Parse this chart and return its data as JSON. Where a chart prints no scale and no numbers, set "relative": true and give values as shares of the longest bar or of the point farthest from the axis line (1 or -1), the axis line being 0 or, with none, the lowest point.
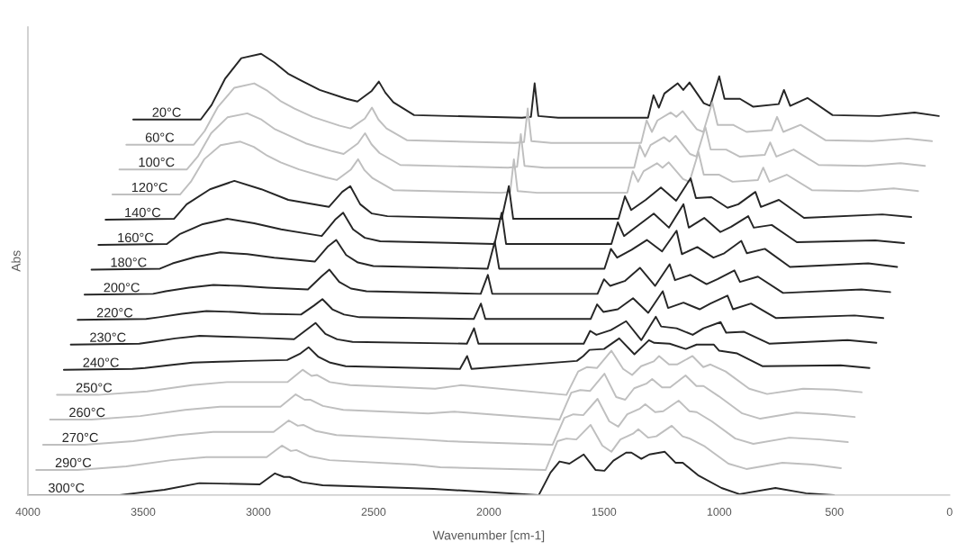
{
  "chart_data": {
    "type": "line",
    "relative": true,
    "xlabel": "Wavenumber [cm-1]",
    "ylabel": "Abs",
    "xlim": [
      4000,
      0
    ],
    "xticks": [
      4000,
      3500,
      3000,
      2500,
      2000,
      1500,
      1000,
      500,
      0
    ],
    "grid": false,
    "series": [
      {
        "name": "20°C",
        "color": "#262626",
        "x": [
          3543,
          3250,
          3203,
          3145,
          3074,
          2988,
          2930,
          2871,
          2813,
          2734,
          2617,
          2570,
          2508,
          2477,
          2449,
          2414,
          2324,
          1856,
          1817,
          1801,
          1785,
          1699,
          1309,
          1285,
          1262,
          1238,
          1180,
          1156,
          1129,
          1067,
          1039,
          1000,
          977,
          910,
          852,
          742,
          719,
          692,
          617,
          508,
          305,
          153,
          47
        ],
        "values": [
          0.851,
          0.851,
          0.884,
          0.943,
          0.99,
          1.0,
          0.98,
          0.955,
          0.939,
          0.918,
          0.898,
          0.892,
          0.916,
          0.937,
          0.912,
          0.89,
          0.861,
          0.855,
          0.857,
          0.933,
          0.859,
          0.855,
          0.855,
          0.906,
          0.878,
          0.91,
          0.933,
          0.918,
          0.935,
          0.888,
          0.882,
          0.949,
          0.898,
          0.898,
          0.88,
          0.886,
          0.918,
          0.882,
          0.9,
          0.861,
          0.859,
          0.867,
          0.859
        ]
      },
      {
        "name": "60°C",
        "color": "#bfbfbf",
        "x": [
          3573,
          3280,
          3233,
          3175,
          3104,
          3018,
          2960,
          2901,
          2843,
          2764,
          2647,
          2600,
          2538,
          2507,
          2479,
          2444,
          2354,
          1886,
          1847,
          1831,
          1815,
          1729,
          1339,
          1315,
          1292,
          1268,
          1210,
          1186,
          1159,
          1097,
          1069,
          1030,
          1007,
          940,
          882,
          772,
          749,
          722,
          647,
          538,
          335,
          183,
          77
        ],
        "values": [
          0.794,
          0.794,
          0.825,
          0.88,
          0.923,
          0.933,
          0.916,
          0.892,
          0.876,
          0.857,
          0.837,
          0.831,
          0.853,
          0.878,
          0.851,
          0.831,
          0.804,
          0.798,
          0.8,
          0.876,
          0.802,
          0.798,
          0.798,
          0.849,
          0.823,
          0.849,
          0.867,
          0.857,
          0.87,
          0.829,
          0.823,
          0.89,
          0.839,
          0.839,
          0.823,
          0.827,
          0.857,
          0.823,
          0.839,
          0.804,
          0.802,
          0.808,
          0.802
        ]
      },
      {
        "name": "100°C",
        "color": "#bfbfbf",
        "x": [
          3603,
          3310,
          3263,
          3205,
          3134,
          3048,
          2990,
          2931,
          2873,
          2794,
          2677,
          2630,
          2568,
          2537,
          2509,
          2474,
          2384,
          1916,
          1877,
          1861,
          1845,
          1759,
          1369,
          1345,
          1322,
          1298,
          1240,
          1216,
          1189,
          1127,
          1099,
          1060,
          1037,
          970,
          912,
          802,
          779,
          752,
          677,
          568,
          365,
          213,
          107
        ],
        "values": [
          0.738,
          0.738,
          0.767,
          0.82,
          0.856,
          0.865,
          0.852,
          0.83,
          0.816,
          0.797,
          0.779,
          0.773,
          0.797,
          0.82,
          0.795,
          0.775,
          0.748,
          0.742,
          0.744,
          0.818,
          0.746,
          0.742,
          0.742,
          0.793,
          0.767,
          0.793,
          0.811,
          0.801,
          0.814,
          0.773,
          0.767,
          0.834,
          0.783,
          0.783,
          0.767,
          0.771,
          0.799,
          0.767,
          0.783,
          0.748,
          0.746,
          0.752,
          0.746
        ]
      },
      {
        "name": "120°C",
        "color": "#bfbfbf",
        "x": [
          3633,
          3340,
          3293,
          3235,
          3164,
          3078,
          3020,
          2961,
          2903,
          2824,
          2707,
          2660,
          2598,
          2567,
          2539,
          2504,
          2414,
          1946,
          1907,
          1891,
          1875,
          1789,
          1399,
          1375,
          1352,
          1328,
          1270,
          1246,
          1219,
          1157,
          1129,
          1090,
          1067,
          1000,
          942,
          832,
          809,
          782,
          707,
          598,
          395,
          243,
          137
        ],
        "values": [
          0.681,
          0.681,
          0.71,
          0.761,
          0.793,
          0.801,
          0.789,
          0.769,
          0.754,
          0.738,
          0.72,
          0.714,
          0.738,
          0.761,
          0.736,
          0.718,
          0.691,
          0.685,
          0.687,
          0.761,
          0.689,
          0.685,
          0.685,
          0.734,
          0.71,
          0.734,
          0.752,
          0.742,
          0.754,
          0.716,
          0.71,
          0.777,
          0.726,
          0.726,
          0.71,
          0.714,
          0.742,
          0.71,
          0.726,
          0.691,
          0.689,
          0.695,
          0.689
        ]
      },
      {
        "name": "140°C",
        "color": "#262626",
        "x": [
          3663,
          3366,
          3311,
          3210,
          3104,
          2987,
          2870,
          2694,
          2636,
          2601,
          2558,
          2507,
          2440,
          1944,
          1913,
          1894,
          1437,
          1409,
          1382,
          1319,
          1253,
          1187,
          1124,
          1101,
          1034,
          964,
          917,
          843,
          819,
          741,
          632,
          292,
          167
        ],
        "values": [
          0.624,
          0.626,
          0.659,
          0.693,
          0.712,
          0.693,
          0.669,
          0.653,
          0.687,
          0.7,
          0.659,
          0.638,
          0.632,
          0.626,
          0.7,
          0.626,
          0.626,
          0.677,
          0.646,
          0.669,
          0.697,
          0.667,
          0.718,
          0.673,
          0.675,
          0.651,
          0.659,
          0.687,
          0.653,
          0.669,
          0.628,
          0.636,
          0.63
        ]
      },
      {
        "name": "160°C",
        "color": "#262626",
        "x": [
          3694,
          3397,
          3342,
          3241,
          3135,
          3018,
          2901,
          2725,
          2667,
          2632,
          2589,
          2538,
          2471,
          1975,
          1944,
          1925,
          1468,
          1440,
          1413,
          1350,
          1284,
          1218,
          1155,
          1132,
          1065,
          995,
          948,
          874,
          850,
          772,
          663,
          323,
          198
        ],
        "values": [
          0.567,
          0.569,
          0.591,
          0.614,
          0.626,
          0.616,
          0.602,
          0.587,
          0.624,
          0.64,
          0.602,
          0.583,
          0.575,
          0.569,
          0.64,
          0.569,
          0.569,
          0.618,
          0.587,
          0.612,
          0.638,
          0.606,
          0.659,
          0.606,
          0.628,
          0.596,
          0.608,
          0.632,
          0.606,
          0.612,
          0.573,
          0.577,
          0.571
        ]
      },
      {
        "name": "180°C",
        "color": "#262626",
        "x": [
          3724,
          3427,
          3372,
          3271,
          3165,
          3048,
          2931,
          2755,
          2697,
          2662,
          2619,
          2568,
          2501,
          2005,
          1974,
          1955,
          1498,
          1470,
          1443,
          1380,
          1314,
          1248,
          1185,
          1162,
          1095,
          1025,
          978,
          904,
          880,
          802,
          693,
          353,
          228
        ],
        "values": [
          0.511,
          0.513,
          0.525,
          0.54,
          0.55,
          0.546,
          0.538,
          0.529,
          0.564,
          0.578,
          0.544,
          0.527,
          0.519,
          0.513,
          0.574,
          0.513,
          0.513,
          0.558,
          0.538,
          0.556,
          0.578,
          0.552,
          0.599,
          0.546,
          0.562,
          0.538,
          0.548,
          0.576,
          0.548,
          0.558,
          0.517,
          0.525,
          0.517
        ]
      },
      {
        "name": "200°C",
        "color": "#262626",
        "x": [
          3754,
          3457,
          3402,
          3301,
          3195,
          3078,
          2961,
          2785,
          2727,
          2692,
          2649,
          2598,
          2531,
          2035,
          2004,
          1985,
          1528,
          1500,
          1473,
          1410,
          1344,
          1278,
          1215,
          1192,
          1125,
          1055,
          1008,
          934,
          910,
          832,
          723,
          383,
          258
        ],
        "values": [
          0.454,
          0.456,
          0.462,
          0.47,
          0.476,
          0.474,
          0.47,
          0.466,
          0.495,
          0.511,
          0.483,
          0.468,
          0.462,
          0.456,
          0.499,
          0.456,
          0.456,
          0.489,
          0.474,
          0.485,
          0.515,
          0.474,
          0.523,
          0.487,
          0.499,
          0.478,
          0.489,
          0.509,
          0.483,
          0.495,
          0.458,
          0.466,
          0.46
        ]
      },
      {
        "name": "220°C",
        "color": "#262626",
        "x": [
          3784,
          3487,
          3432,
          3331,
          3225,
          3108,
          2991,
          2815,
          2757,
          2722,
          2679,
          2628,
          2561,
          2065,
          2034,
          2015,
          1558,
          1530,
          1503,
          1440,
          1374,
          1308,
          1245,
          1222,
          1155,
          1085,
          1038,
          964,
          940,
          862,
          753,
          413,
          288
        ],
        "values": [
          0.397,
          0.399,
          0.403,
          0.411,
          0.417,
          0.415,
          0.411,
          0.409,
          0.43,
          0.444,
          0.421,
          0.409,
          0.403,
          0.399,
          0.434,
          0.399,
          0.399,
          0.432,
          0.415,
          0.421,
          0.446,
          0.413,
          0.462,
          0.424,
          0.436,
          0.421,
          0.434,
          0.452,
          0.421,
          0.434,
          0.401,
          0.407,
          0.401
        ]
      },
      {
        "name": "230°C",
        "color": "#262626",
        "x": [
          3814,
          3517,
          3462,
          3361,
          3255,
          3138,
          3021,
          2845,
          2787,
          2752,
          2709,
          2658,
          2591,
          2095,
          2064,
          2045,
          1588,
          1560,
          1533,
          1470,
          1404,
          1338,
          1275,
          1252,
          1185,
          1115,
          1068,
          994,
          970,
          892,
          783,
          443,
          318
        ],
        "values": [
          0.341,
          0.343,
          0.347,
          0.355,
          0.361,
          0.359,
          0.357,
          0.353,
          0.376,
          0.39,
          0.365,
          0.353,
          0.347,
          0.343,
          0.378,
          0.343,
          0.343,
          0.372,
          0.363,
          0.374,
          0.394,
          0.351,
          0.404,
          0.382,
          0.378,
          0.363,
          0.378,
          0.392,
          0.368,
          0.37,
          0.343,
          0.351,
          0.345
        ]
      },
      {
        "name": "240°C",
        "color": "#262626",
        "x": [
          3844,
          3547,
          3492,
          3391,
          3285,
          3168,
          3051,
          2875,
          2817,
          2782,
          2739,
          2688,
          2621,
          2125,
          2094,
          2075,
          1618,
          1590,
          1563,
          1500,
          1434,
          1368,
          1305,
          1282,
          1215,
          1145,
          1098,
          1024,
          1000,
          922,
          813,
          473,
          348
        ],
        "values": [
          0.284,
          0.286,
          0.288,
          0.294,
          0.3,
          0.302,
          0.304,
          0.306,
          0.321,
          0.335,
          0.313,
          0.3,
          0.292,
          0.286,
          0.315,
          0.286,
          0.304,
          0.315,
          0.329,
          0.331,
          0.355,
          0.319,
          0.351,
          0.345,
          0.343,
          0.331,
          0.341,
          0.341,
          0.327,
          0.321,
          0.292,
          0.294,
          0.288
        ]
      },
      {
        "name": "250°C",
        "color": "#bfbfbf",
        "x": [
          3874,
          3694,
          3483,
          3288,
          3136,
          2874,
          2808,
          2769,
          2745,
          2690,
          2601,
          2233,
          2120,
          1663,
          1612,
          1573,
          1530,
          1468,
          1417,
          1378,
          1339,
          1284,
          1261,
          1218,
          1183,
          1116,
          1069,
          1038,
          972,
          870,
          792,
          636,
          503,
          382
        ],
        "values": [
          0.227,
          0.227,
          0.235,
          0.249,
          0.256,
          0.256,
          0.284,
          0.27,
          0.272,
          0.256,
          0.249,
          0.241,
          0.249,
          0.227,
          0.28,
          0.29,
          0.288,
          0.327,
          0.286,
          0.272,
          0.292,
          0.303,
          0.315,
          0.296,
          0.296,
          0.315,
          0.29,
          0.296,
          0.28,
          0.241,
          0.229,
          0.241,
          0.239,
          0.233
        ]
      },
      {
        "name": "260°C",
        "color": "#bfbfbf",
        "x": [
          3904,
          3724,
          3513,
          3318,
          3166,
          2904,
          2838,
          2799,
          2775,
          2720,
          2631,
          2263,
          2150,
          1693,
          1642,
          1603,
          1560,
          1498,
          1447,
          1408,
          1369,
          1314,
          1291,
          1248,
          1213,
          1146,
          1099,
          1068,
          1002,
          900,
          822,
          666,
          533,
          412
        ],
        "values": [
          0.171,
          0.171,
          0.179,
          0.193,
          0.2,
          0.2,
          0.228,
          0.216,
          0.216,
          0.202,
          0.193,
          0.185,
          0.189,
          0.171,
          0.232,
          0.238,
          0.236,
          0.275,
          0.222,
          0.216,
          0.242,
          0.253,
          0.263,
          0.244,
          0.244,
          0.271,
          0.247,
          0.247,
          0.224,
          0.185,
          0.173,
          0.187,
          0.183,
          0.177
        ]
      },
      {
        "name": "270°C",
        "color": "#bfbfbf",
        "x": [
          3934,
          3754,
          3543,
          3348,
          3196,
          2934,
          2868,
          2829,
          2805,
          2750,
          2661,
          2293,
          2180,
          1723,
          1672,
          1633,
          1590,
          1528,
          1477,
          1438,
          1399,
          1344,
          1321,
          1278,
          1243,
          1176,
          1129,
          1098,
          1032,
          930,
          852,
          696,
          563,
          442
        ],
        "values": [
          0.114,
          0.114,
          0.122,
          0.136,
          0.143,
          0.143,
          0.169,
          0.157,
          0.159,
          0.145,
          0.136,
          0.126,
          0.122,
          0.114,
          0.175,
          0.183,
          0.181,
          0.218,
          0.167,
          0.155,
          0.183,
          0.196,
          0.206,
          0.188,
          0.19,
          0.214,
          0.19,
          0.188,
          0.167,
          0.128,
          0.116,
          0.13,
          0.126,
          0.12
        ]
      },
      {
        "name": "290°C",
        "color": "#bfbfbf",
        "x": [
          3964,
          3784,
          3573,
          3378,
          3226,
          2964,
          2898,
          2859,
          2835,
          2780,
          2691,
          2323,
          2210,
          1753,
          1702,
          1663,
          1620,
          1558,
          1507,
          1468,
          1429,
          1374,
          1351,
          1308,
          1273,
          1206,
          1159,
          1128,
          1062,
          960,
          882,
          726,
          593,
          472
        ],
        "values": [
          0.057,
          0.057,
          0.065,
          0.079,
          0.086,
          0.086,
          0.112,
          0.1,
          0.102,
          0.088,
          0.079,
          0.069,
          0.063,
          0.057,
          0.122,
          0.128,
          0.126,
          0.159,
          0.112,
          0.098,
          0.126,
          0.139,
          0.149,
          0.13,
          0.133,
          0.157,
          0.133,
          0.128,
          0.11,
          0.071,
          0.059,
          0.073,
          0.069,
          0.061
        ]
      },
      {
        "name": "300°C",
        "color": "#262626",
        "x": [
          3994,
          3814,
          3603,
          3408,
          3256,
          2994,
          2928,
          2889,
          2865,
          2810,
          2721,
          2353,
          2240,
          1783,
          1732,
          1693,
          1650,
          1588,
          1537,
          1498,
          1459,
          1404,
          1381,
          1338,
          1303,
          1236,
          1189,
          1158,
          1092,
          990,
          912,
          756,
          623,
          502
        ],
        "values": [
          0.0,
          0.0,
          0.0,
          0.012,
          0.027,
          0.024,
          0.049,
          0.041,
          0.041,
          0.029,
          0.022,
          0.016,
          0.014,
          0.0,
          0.051,
          0.076,
          0.071,
          0.092,
          0.057,
          0.055,
          0.078,
          0.096,
          0.096,
          0.082,
          0.092,
          0.098,
          0.073,
          0.073,
          0.045,
          0.016,
          0.002,
          0.016,
          0.004,
          0.0
        ]
      }
    ]
  }
}
